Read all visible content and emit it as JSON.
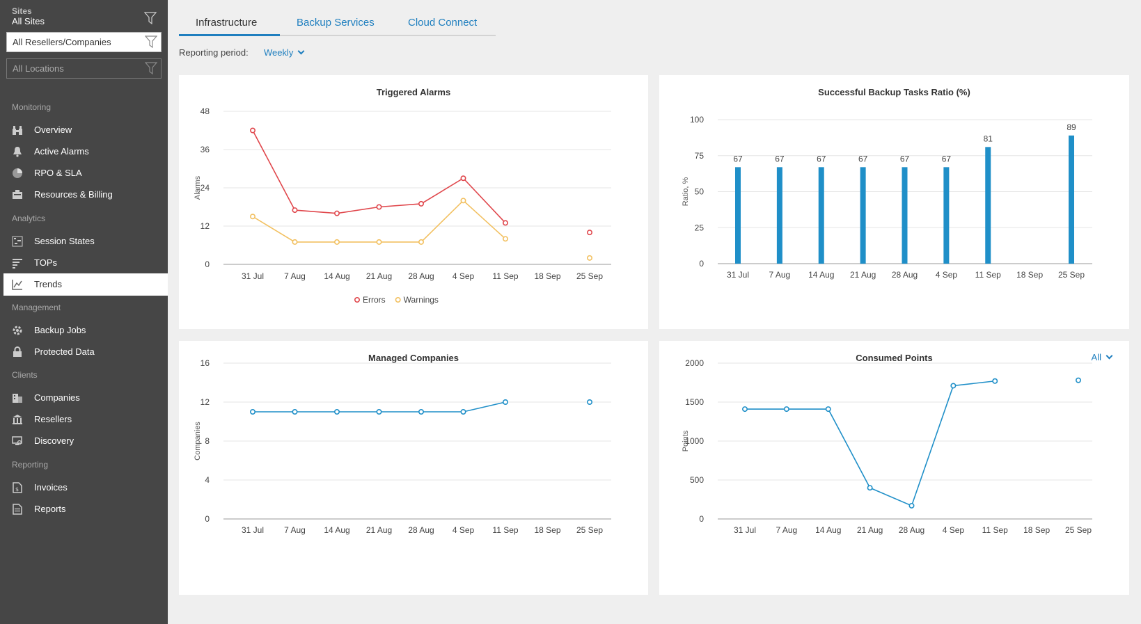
{
  "sidebar": {
    "sites_label": "Sites",
    "sites_value": "All Sites",
    "resellers_filter": "All Resellers/Companies",
    "locations_filter": "All Locations",
    "sections": {
      "monitoring": "Monitoring",
      "analytics": "Analytics",
      "management": "Management",
      "clients": "Clients",
      "reporting": "Reporting"
    },
    "items": {
      "overview": "Overview",
      "active_alarms": "Active Alarms",
      "rpo_sla": "RPO & SLA",
      "resources_billing": "Resources & Billing",
      "session_states": "Session States",
      "tops": "TOPs",
      "trends": "Trends",
      "backup_jobs": "Backup Jobs",
      "protected_data": "Protected Data",
      "companies": "Companies",
      "resellers": "Resellers",
      "discovery": "Discovery",
      "invoices": "Invoices",
      "reports": "Reports"
    }
  },
  "tabs": {
    "infrastructure": "Infrastructure",
    "backup_services": "Backup Services",
    "cloud_connect": "Cloud Connect"
  },
  "reporting": {
    "label": "Reporting period:",
    "value": "Weekly"
  },
  "consumed_points_filter": "All",
  "colors": {
    "accent": "#1f8fc8",
    "errors": "#e0474c",
    "warnings": "#f2c060",
    "sidebar": "#464646"
  },
  "chart_data": [
    {
      "id": "alarms",
      "type": "line",
      "title": "Triggered Alarms",
      "ylabel": "Alarms",
      "xlabel": "",
      "categories": [
        "31 Jul",
        "7 Aug",
        "14 Aug",
        "21 Aug",
        "28 Aug",
        "4 Sep",
        "11 Sep",
        "18 Sep",
        "25 Sep"
      ],
      "yticks": [
        0,
        12,
        24,
        36,
        48
      ],
      "ylim": [
        0,
        48
      ],
      "grid": true,
      "legend": "bottom",
      "series": [
        {
          "name": "Errors",
          "color": "#e0474c",
          "values": [
            42,
            17,
            16,
            18,
            19,
            27,
            13,
            null,
            10
          ]
        },
        {
          "name": "Warnings",
          "color": "#f2c060",
          "values": [
            15,
            7,
            7,
            7,
            7,
            20,
            8,
            null,
            2
          ]
        }
      ]
    },
    {
      "id": "ratio",
      "type": "bar",
      "title": "Successful Backup Tasks Ratio (%)",
      "ylabel": "Ratio, %",
      "xlabel": "",
      "categories": [
        "31 Jul",
        "7 Aug",
        "14 Aug",
        "21 Aug",
        "28 Aug",
        "4 Sep",
        "11 Sep",
        "18 Sep",
        "25 Sep"
      ],
      "yticks": [
        0,
        25,
        50,
        75,
        100
      ],
      "ylim": [
        0,
        100
      ],
      "grid": true,
      "series": [
        {
          "color": "#1f8fc8",
          "values": [
            67,
            67,
            67,
            67,
            67,
            67,
            81,
            null,
            89
          ]
        }
      ]
    },
    {
      "id": "companies",
      "type": "line",
      "title": "Managed Companies",
      "ylabel": "Companies",
      "xlabel": "",
      "categories": [
        "31 Jul",
        "7 Aug",
        "14 Aug",
        "21 Aug",
        "28 Aug",
        "4 Sep",
        "11 Sep",
        "18 Sep",
        "25 Sep"
      ],
      "yticks": [
        0,
        4,
        8,
        12,
        16
      ],
      "ylim": [
        0,
        16
      ],
      "grid": true,
      "series": [
        {
          "color": "#1f8fc8",
          "values": [
            11,
            11,
            11,
            11,
            11,
            11,
            12,
            null,
            12
          ]
        }
      ]
    },
    {
      "id": "points",
      "type": "line",
      "title": "Consumed Points",
      "ylabel": "Points",
      "xlabel": "",
      "categories": [
        "31 Jul",
        "7 Aug",
        "14 Aug",
        "21 Aug",
        "28 Aug",
        "4 Sep",
        "11 Sep",
        "18 Sep",
        "25 Sep"
      ],
      "yticks": [
        0,
        500,
        1000,
        1500,
        2000
      ],
      "ylim": [
        0,
        2000
      ],
      "grid": true,
      "series": [
        {
          "color": "#1f8fc8",
          "values": [
            1410,
            1410,
            1410,
            400,
            170,
            1710,
            1770,
            null,
            1780
          ]
        }
      ]
    }
  ]
}
